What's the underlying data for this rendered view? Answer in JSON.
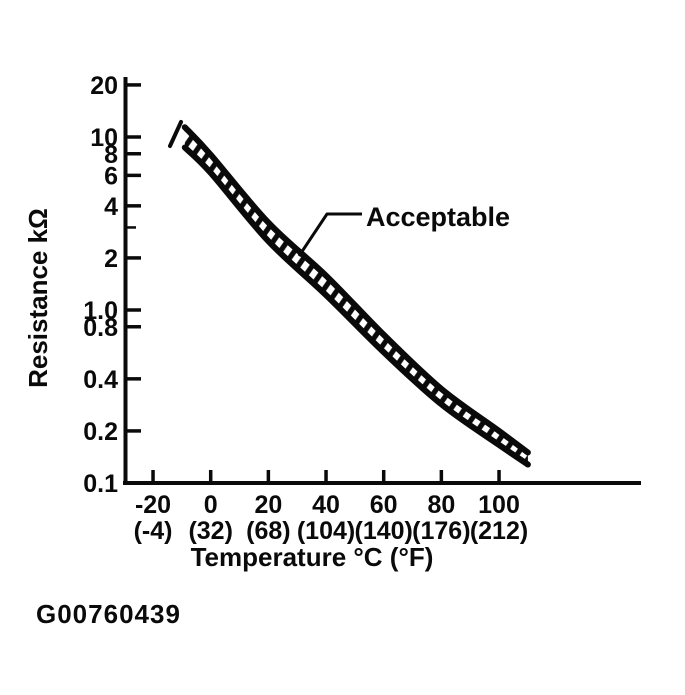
{
  "figure": {
    "annotation": "Acceptable",
    "code": "G00760439",
    "ink_color": "#0a0a0a",
    "background_color": "#ffffff"
  },
  "chart_data": {
    "type": "area",
    "title": "",
    "xlabel": "Temperature °C (°F)",
    "ylabel": "Resistance kΩ",
    "grid": false,
    "legend_position": "none",
    "x_axis": {
      "tick_values_c": [
        -20,
        0,
        20,
        40,
        60,
        80,
        100
      ],
      "celsius_labels": [
        "-20",
        "0",
        "20",
        "40",
        "60",
        "80",
        "100"
      ],
      "fahrenheit_labels": [
        "(-4)",
        "(32)",
        "(68)",
        "(104)",
        "(140)",
        "(176)",
        "(212)"
      ],
      "range_c": [
        -30,
        119
      ]
    },
    "y_axis": {
      "scale": "log",
      "unit": "kΩ",
      "tick_values": [
        20,
        10,
        8,
        6,
        4,
        2,
        1.0,
        0.8,
        0.4,
        0.2,
        0.1
      ],
      "tick_labels": [
        "20",
        "10",
        "8",
        "6",
        "4",
        "2",
        "1.0",
        "0.8",
        "0.4",
        "0.2",
        "0.1"
      ],
      "minor_tick_values": [
        3
      ],
      "range": [
        0.1,
        30
      ]
    },
    "band": {
      "name": "Acceptable",
      "temps_c": [
        -9,
        0,
        20,
        40,
        60,
        80,
        100,
        110
      ],
      "upper_kohm": [
        11.4,
        7.9,
        3.2,
        1.58,
        0.72,
        0.35,
        0.2,
        0.15
      ],
      "lower_kohm": [
        8.7,
        6.2,
        2.5,
        1.22,
        0.57,
        0.285,
        0.166,
        0.128
      ]
    }
  }
}
